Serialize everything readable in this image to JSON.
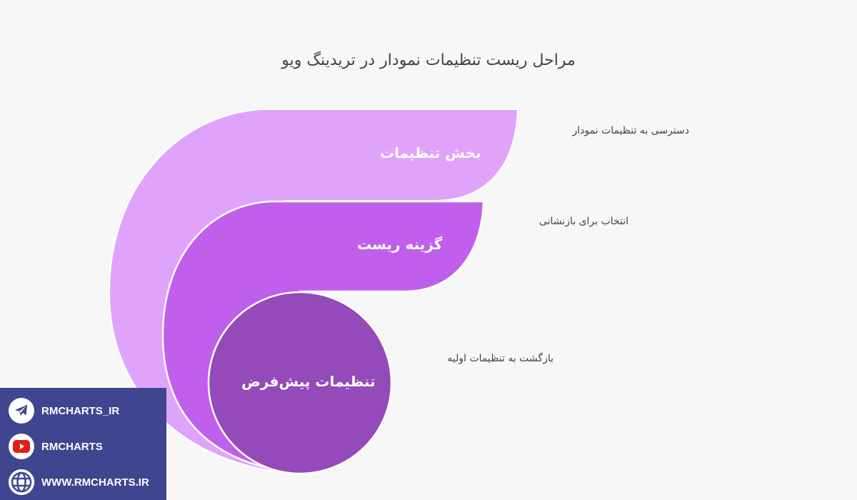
{
  "title": "مراحل ریست تنظیمات نمودار در تریدینگ ویو",
  "colors": {
    "layer1": "#e0a3fc",
    "layer2": "#bf5feb",
    "layer3": "#944ab8",
    "social_bg": "#404590",
    "background": "#f7f7f7"
  },
  "steps": [
    {
      "label": "بخش تنظیمات",
      "description": "دسترسی به تنظیمات نمودار"
    },
    {
      "label": "گزینه ریست",
      "description": "انتخاب برای بازنشانی"
    },
    {
      "label": "تنظیمات پیش‌فرض",
      "description": "بازگشت به تنظیمات اولیه"
    }
  ],
  "social": [
    {
      "icon": "telegram-icon",
      "text": "RMCHARTS_IR"
    },
    {
      "icon": "youtube-icon",
      "text": "RMCHARTS"
    },
    {
      "icon": "globe-icon",
      "text": "WWW.RMCHARTS.IR"
    }
  ]
}
